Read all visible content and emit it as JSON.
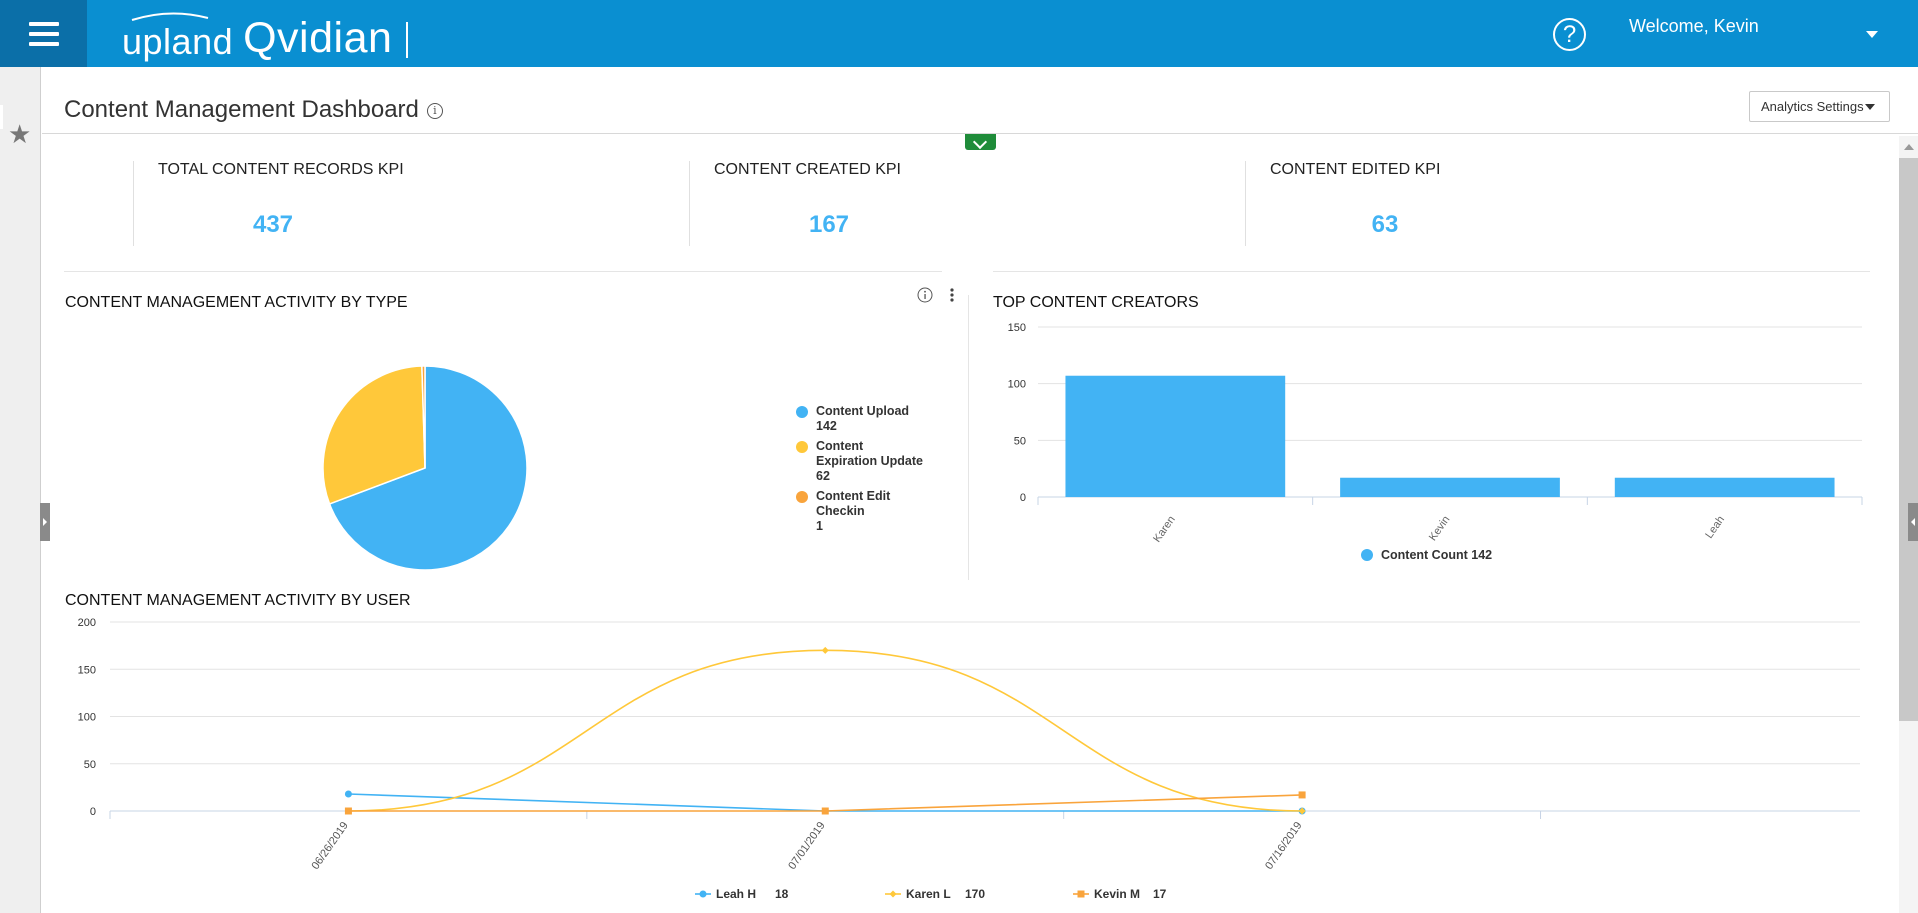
{
  "header": {
    "brand_upland": "upland",
    "brand_product": "Qvidian",
    "help_glyph": "?",
    "welcome": "Welcome, Kevin"
  },
  "page": {
    "title": "Content Management Dashboard",
    "info_glyph": "i",
    "analytics_settings": "Analytics Settings"
  },
  "kpis": [
    {
      "label": "TOTAL CONTENT RECORDS KPI",
      "value": "437"
    },
    {
      "label": "CONTENT CREATED KPI",
      "value": "167"
    },
    {
      "label": "CONTENT EDITED KPI",
      "value": "63"
    }
  ],
  "sections": {
    "by_type": "CONTENT MANAGEMENT ACTIVITY BY TYPE",
    "top_creators": "TOP CONTENT CREATORS",
    "by_user": "CONTENT MANAGEMENT ACTIVITY BY USER"
  },
  "colors": {
    "topbar": "#0a8fd1",
    "blue": "#42b3f4",
    "yellow": "#ffc83a",
    "orange": "#f9a43c",
    "kpi_value": "#42b3f4"
  },
  "chart_data": [
    {
      "type": "pie",
      "slices": [
        {
          "label": "Content Upload",
          "value": 142,
          "legend_lines": [
            "Content Upload",
            "142"
          ],
          "color": "#42b3f4"
        },
        {
          "label": "Content Expiration Update",
          "value": 62,
          "legend_lines": [
            "Content",
            "Expiration Update",
            "62"
          ],
          "color": "#ffc83a"
        },
        {
          "label": "Content Edit Checkin",
          "value": 1,
          "legend_lines": [
            "Content Edit",
            "Checkin",
            "1"
          ],
          "color": "#f9a43c"
        }
      ],
      "legend_position": "right"
    },
    {
      "type": "bar",
      "categories": [
        "Karen",
        "Kevin",
        "Leah"
      ],
      "series": [
        {
          "name": "Content Count",
          "values": [
            107,
            17,
            17
          ],
          "color": "#42b3f4"
        }
      ],
      "legend_label": "Content Count 142",
      "ylim": [
        0,
        150
      ],
      "yticks": [
        0,
        50,
        100,
        150
      ],
      "grid": true,
      "legend_position": "bottom"
    },
    {
      "type": "line",
      "x": [
        "06/26/2019",
        "07/01/2019",
        "07/16/2019"
      ],
      "series": [
        {
          "name": "Leah H",
          "total": "18",
          "values": [
            18,
            0,
            0
          ],
          "color": "#42b3f4",
          "marker": "circle"
        },
        {
          "name": "Karen L",
          "total": "170",
          "values": [
            0,
            170,
            0
          ],
          "color": "#ffc83a",
          "marker": "diamond",
          "smooth": true
        },
        {
          "name": "Kevin M",
          "total": "17",
          "values": [
            0,
            0,
            17
          ],
          "color": "#f9a43c",
          "marker": "square"
        }
      ],
      "ylim": [
        0,
        200
      ],
      "yticks": [
        0,
        50,
        100,
        150,
        200
      ],
      "grid": true,
      "legend_position": "bottom"
    }
  ]
}
